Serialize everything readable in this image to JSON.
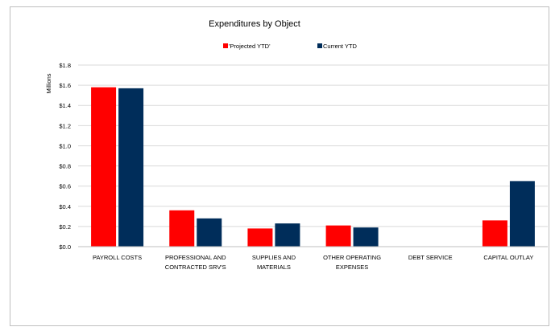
{
  "chart_data": {
    "type": "bar",
    "title": "Expenditures by Object",
    "ylabel": "Millions",
    "xlabel": "",
    "ylim": [
      0,
      1.8
    ],
    "yticks": [
      "$0.0",
      "$0.2",
      "$0.4",
      "$0.6",
      "$0.8",
      "$1.0",
      "$1.2",
      "$1.4",
      "$1.6",
      "$1.8"
    ],
    "grid": true,
    "legend_position": "top",
    "categories": [
      [
        "PAYROLL COSTS"
      ],
      [
        "PROFESSIONAL AND",
        "CONTRACTED SRV'S"
      ],
      [
        "SUPPLIES AND",
        "MATERIALS"
      ],
      [
        "OTHER OPERATING",
        "EXPENSES"
      ],
      [
        "DEBT SERVICE"
      ],
      [
        "CAPITAL OUTLAY"
      ]
    ],
    "series": [
      {
        "name": "'Projected YTD'",
        "color": "#ff0000",
        "values": [
          1.58,
          0.36,
          0.18,
          0.21,
          0.0,
          0.26
        ]
      },
      {
        "name": "Current YTD",
        "color": "#002d5a",
        "values": [
          1.57,
          0.28,
          0.23,
          0.19,
          0.0,
          0.65
        ]
      }
    ]
  }
}
